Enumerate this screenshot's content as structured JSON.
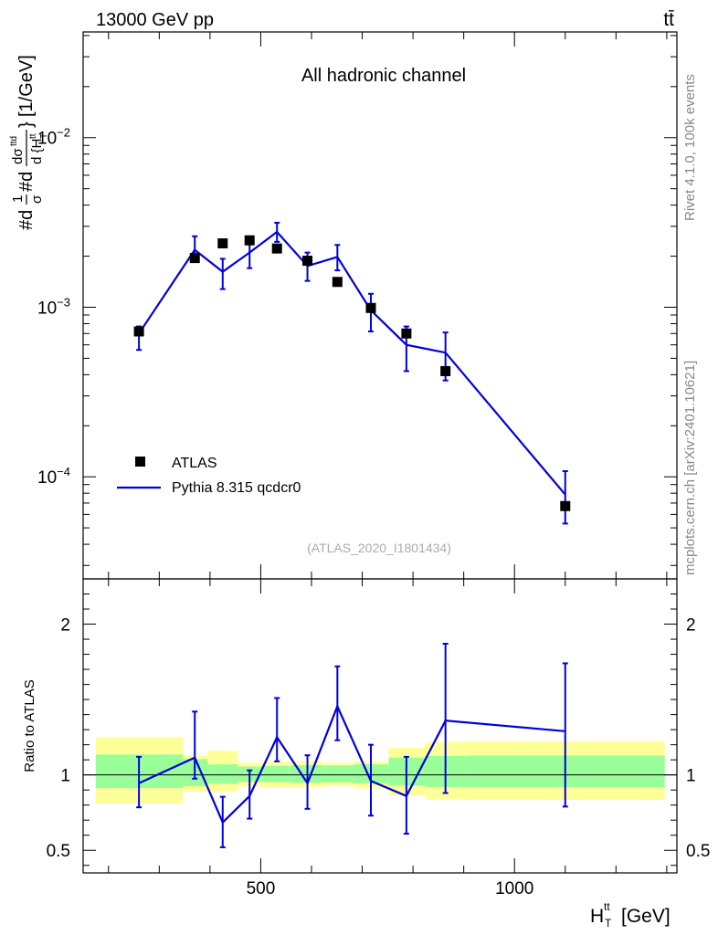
{
  "header": {
    "left": "13000 GeV pp",
    "right": "tt̄",
    "side_top": "Rivet 4.1.0,  100k events",
    "side_bottom": "mcplots.cern.ch [arXiv:2401.10621]"
  },
  "chart_data": [
    {
      "type": "scatter",
      "panel": "main",
      "title": "All hadronic channel",
      "watermark": "(ATLAS_2020_I1801434)",
      "ylabel": "#d₁/σ#d dσᵗᵗ/d{Hₜᵗᵗ} [1/GeV]",
      "ylabel_plain": "[1/GeV]",
      "yscale": "log",
      "xlim": [
        150,
        1320
      ],
      "ylim": [
        2.5e-05,
        0.042
      ],
      "yticks": [
        {
          "value": 0.01,
          "base": "10",
          "exp": "−2"
        },
        {
          "value": 0.001,
          "base": "10",
          "exp": "−3"
        },
        {
          "value": 0.0001,
          "base": "10",
          "exp": "−4"
        }
      ],
      "legend": {
        "position": "bottom-left",
        "entries": [
          "ATLAS",
          "Pythia 8.315 qcdcr0"
        ]
      },
      "series": [
        {
          "name": "ATLAS",
          "style": "marker",
          "color": "#000000",
          "x": [
            260,
            370,
            425,
            478,
            532,
            592,
            651,
            717,
            787,
            864,
            1100
          ],
          "y": [
            0.00072,
            0.00195,
            0.00238,
            0.00248,
            0.00222,
            0.00188,
            0.00141,
            0.00099,
            0.0007,
            0.00042,
            6.72e-05
          ]
        },
        {
          "name": "Pythia 8.315 qcdcr0",
          "style": "line",
          "color": "#0000dd",
          "x": [
            260,
            370,
            425,
            478,
            532,
            592,
            651,
            717,
            787,
            864,
            1100
          ],
          "y": [
            0.0007,
            0.00218,
            0.00162,
            0.0021,
            0.00278,
            0.00175,
            0.00198,
            0.00096,
            0.0006,
            0.00054,
            7.85e-05
          ],
          "ylow": [
            0.00056,
            0.0019,
            0.00128,
            0.0017,
            0.00243,
            0.00143,
            0.00165,
            0.00072,
            0.00042,
            0.00037,
            5.3e-05
          ],
          "yhigh": [
            0.00077,
            0.00262,
            0.00193,
            0.00245,
            0.00315,
            0.0021,
            0.00233,
            0.0012,
            0.00077,
            0.00071,
            0.000108
          ]
        }
      ]
    },
    {
      "type": "scatter",
      "panel": "ratio",
      "ylabel": "Ratio to ATLAS",
      "xlabel_main": "H",
      "xlabel_sup": "tt",
      "xlabel_sub": "T",
      "xlabel_unit": "[GeV]",
      "xlim": [
        150,
        1320
      ],
      "ylim": [
        0.35,
        2.3
      ],
      "yticks": [
        {
          "value": 0.5,
          "label": "0.5"
        },
        {
          "value": 1,
          "label": "1"
        },
        {
          "value": 2,
          "label": "2"
        }
      ],
      "xticks": [
        {
          "value": 500,
          "label": "500"
        },
        {
          "value": 1000,
          "label": "1000"
        }
      ],
      "bands": [
        {
          "x0": 175,
          "x1": 347,
          "inner": [
            0.912,
            1.135
          ],
          "outer": [
            0.81,
            1.25
          ]
        },
        {
          "x0": 347,
          "x1": 395,
          "inner": [
            0.925,
            1.105
          ],
          "outer": [
            0.89,
            1.13
          ]
        },
        {
          "x0": 395,
          "x1": 455,
          "inner": [
            0.942,
            1.07
          ],
          "outer": [
            0.89,
            1.16
          ]
        },
        {
          "x0": 455,
          "x1": 505,
          "inner": [
            0.955,
            1.055
          ],
          "outer": [
            0.922,
            1.08
          ]
        },
        {
          "x0": 505,
          "x1": 560,
          "inner": [
            0.952,
            1.06
          ],
          "outer": [
            0.918,
            1.09
          ]
        },
        {
          "x0": 560,
          "x1": 622,
          "inner": [
            0.948,
            1.065
          ],
          "outer": [
            0.92,
            1.09
          ]
        },
        {
          "x0": 622,
          "x1": 682,
          "inner": [
            0.95,
            1.062
          ],
          "outer": [
            0.925,
            1.08
          ]
        },
        {
          "x0": 682,
          "x1": 752,
          "inner": [
            0.945,
            1.07
          ],
          "outer": [
            0.91,
            1.09
          ]
        },
        {
          "x0": 752,
          "x1": 824,
          "inner": [
            0.93,
            1.115
          ],
          "outer": [
            0.865,
            1.18
          ]
        },
        {
          "x0": 824,
          "x1": 904,
          "inner": [
            0.92,
            1.125
          ],
          "outer": [
            0.84,
            1.22
          ]
        },
        {
          "x0": 904,
          "x1": 1296,
          "inner": [
            0.918,
            1.128
          ],
          "outer": [
            0.835,
            1.225
          ]
        }
      ],
      "series": [
        {
          "name": "Pythia 8.315 qcdcr0 / ATLAS",
          "style": "line",
          "color": "#0000dd",
          "x": [
            260,
            370,
            425,
            478,
            532,
            592,
            651,
            717,
            787,
            864,
            1100
          ],
          "y": [
            0.945,
            1.115,
            0.685,
            0.86,
            1.25,
            0.945,
            1.455,
            0.96,
            0.86,
            1.36,
            1.29
          ],
          "ylow": [
            0.785,
            0.975,
            0.52,
            0.71,
            1.09,
            0.775,
            1.23,
            0.73,
            0.61,
            0.88,
            0.79
          ],
          "yhigh": [
            1.12,
            1.42,
            0.855,
            1.03,
            1.51,
            1.13,
            1.72,
            1.2,
            1.12,
            1.87,
            1.74
          ]
        }
      ]
    }
  ]
}
